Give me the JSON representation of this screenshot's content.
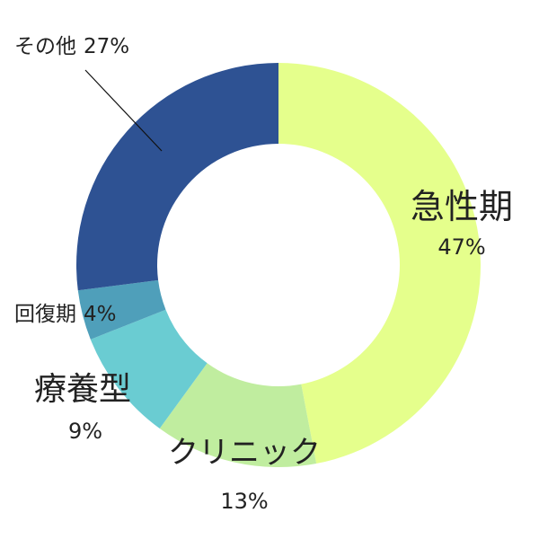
{
  "chart_data": {
    "type": "pie",
    "variant": "donut",
    "start": "top",
    "direction": "clockwise",
    "slices": [
      {
        "name": "急性期",
        "value": 47,
        "label": "47%",
        "color": "#e5ff8c"
      },
      {
        "name": "クリニック",
        "value": 13,
        "label": "13%",
        "color": "#c0ed9f"
      },
      {
        "name": "療養型",
        "value": 9,
        "label": "9%",
        "color": "#6accd2"
      },
      {
        "name": "回復期",
        "value": 4,
        "label": "4%",
        "color": "#4f9fba"
      },
      {
        "name": "その他",
        "value": 27,
        "label": "27%",
        "color": "#2e5293"
      }
    ]
  }
}
